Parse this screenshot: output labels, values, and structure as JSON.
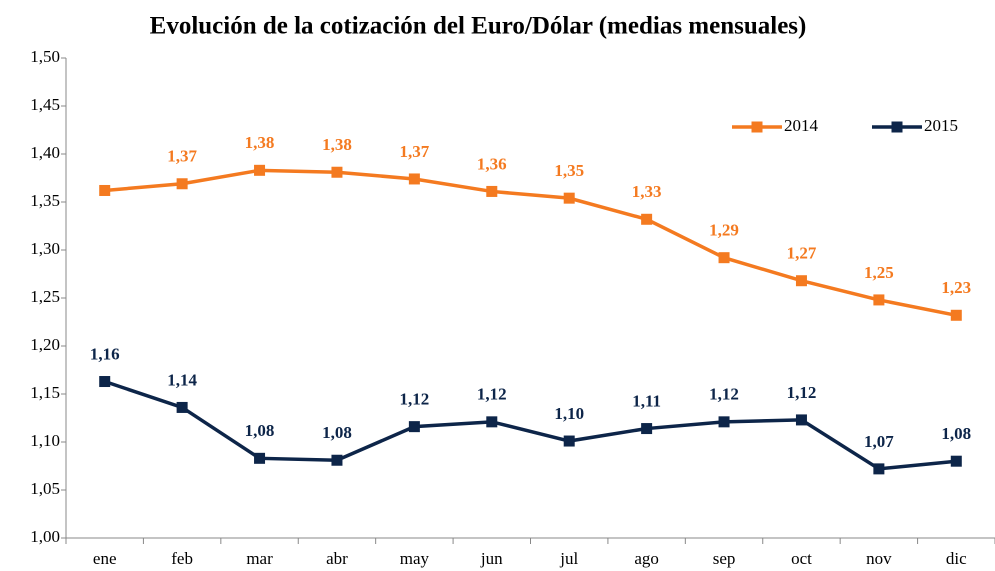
{
  "chart_data": {
    "type": "line",
    "title": "Evolución de la cotización del Euro/Dólar (medias mensuales)",
    "categories": [
      "ene",
      "feb",
      "mar",
      "abr",
      "may",
      "jun",
      "jul",
      "ago",
      "sep",
      "oct",
      "nov",
      "dic"
    ],
    "series": [
      {
        "name": "2014",
        "color": "#f47a20",
        "values": [
          1.362,
          1.369,
          1.383,
          1.381,
          1.374,
          1.361,
          1.354,
          1.332,
          1.292,
          1.268,
          1.248,
          1.232
        ],
        "value_labels": [
          null,
          "1,37",
          "1,38",
          "1,38",
          "1,37",
          "1,36",
          "1,35",
          "1,33",
          "1,29",
          "1,27",
          "1,25",
          "1,23"
        ]
      },
      {
        "name": "2015",
        "color": "#0d2549",
        "values": [
          1.163,
          1.136,
          1.083,
          1.081,
          1.116,
          1.121,
          1.101,
          1.114,
          1.121,
          1.123,
          1.072,
          1.08
        ],
        "value_labels": [
          "1,16",
          "1,14",
          "1,08",
          "1,08",
          "1,12",
          "1,12",
          "1,10",
          "1,11",
          "1,12",
          "1,12",
          "1,07",
          "1,08"
        ]
      }
    ],
    "ylim": [
      1.0,
      1.5
    ],
    "yticks": [
      {
        "value": 1.0,
        "label": "1,00"
      },
      {
        "value": 1.05,
        "label": "1,05"
      },
      {
        "value": 1.1,
        "label": "1,10"
      },
      {
        "value": 1.15,
        "label": "1,15"
      },
      {
        "value": 1.2,
        "label": "1,20"
      },
      {
        "value": 1.25,
        "label": "1,25"
      },
      {
        "value": 1.3,
        "label": "1,30"
      },
      {
        "value": 1.35,
        "label": "1,35"
      },
      {
        "value": 1.4,
        "label": "1,40"
      },
      {
        "value": 1.45,
        "label": "1,45"
      },
      {
        "value": 1.5,
        "label": "1,50"
      }
    ],
    "legend": "top-right"
  }
}
